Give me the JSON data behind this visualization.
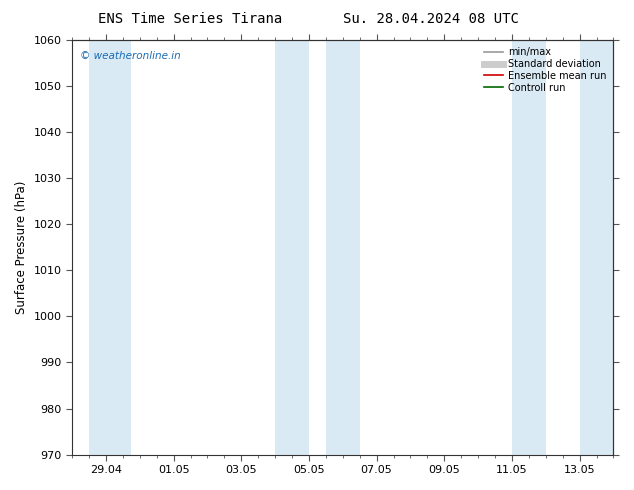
{
  "title_left": "ENS Time Series Tirana",
  "title_right": "Su. 28.04.2024 08 UTC",
  "ylabel": "Surface Pressure (hPa)",
  "ylim": [
    970,
    1060
  ],
  "yticks": [
    970,
    980,
    990,
    1000,
    1010,
    1020,
    1030,
    1040,
    1050,
    1060
  ],
  "watermark_text": "© weatheronline.in",
  "watermark_color": "#1a6bb5",
  "legend_entries": [
    {
      "label": "min/max",
      "color": "#999999",
      "lw": 1.2
    },
    {
      "label": "Standard deviation",
      "color": "#cccccc",
      "lw": 5
    },
    {
      "label": "Ensemble mean run",
      "color": "#cc0000",
      "lw": 1.2
    },
    {
      "label": "Controll run",
      "color": "#006600",
      "lw": 1.2
    }
  ],
  "bg_color": "#ffffff",
  "shade_color": "#daeaf5",
  "font_size": 8,
  "title_font_size": 10
}
